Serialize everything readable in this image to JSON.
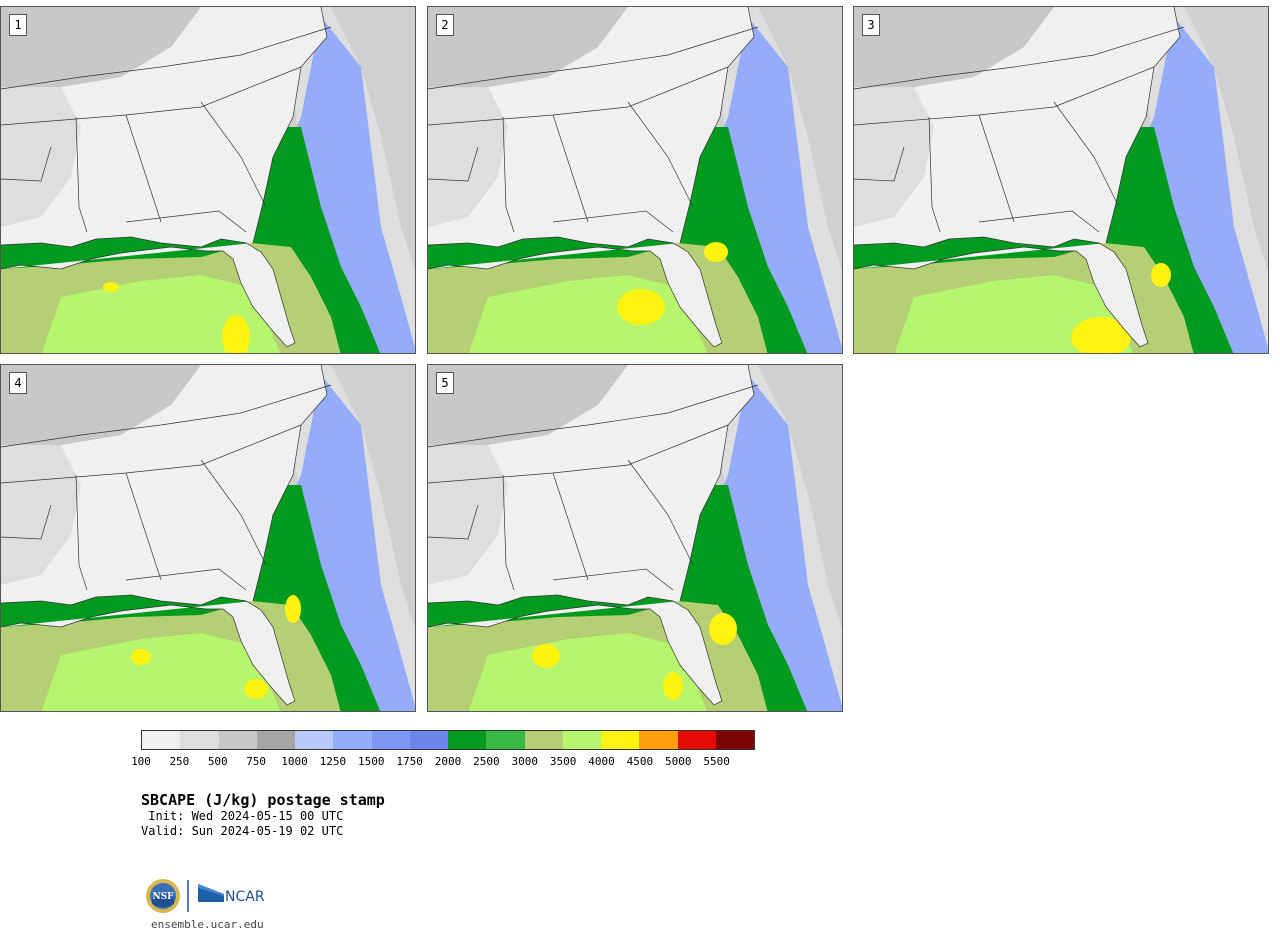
{
  "map": {
    "title": "SBCAPE (J/kg) postage stamp",
    "init_label": " Init: Wed 2024-05-15 00 UTC",
    "valid_label": "Valid: Sun 2024-05-19 02 UTC",
    "website": "ensemble.ucar.edu",
    "logos": [
      "NSF",
      "NCAR"
    ],
    "panels": [
      {
        "number": "1"
      },
      {
        "number": "2"
      },
      {
        "number": "3"
      },
      {
        "number": "4"
      },
      {
        "number": "5"
      }
    ],
    "colorbar": {
      "ticks": [
        "100",
        "250",
        "500",
        "750",
        "1000",
        "1250",
        "1500",
        "1750",
        "2000",
        "2500",
        "3000",
        "3500",
        "4000",
        "4500",
        "5000",
        "5500"
      ],
      "colors": [
        "#f0f0f0",
        "#dedede",
        "#c8c8c8",
        "#a6a6a6",
        "#b9c9fb",
        "#94acf9",
        "#7f97f4",
        "#6e84ea",
        "#009a1e",
        "#3ab844",
        "#b4cf74",
        "#b6f56e",
        "#fff311",
        "#ff9f0c",
        "#e60a06",
        "#7d0404"
      ]
    }
  }
}
